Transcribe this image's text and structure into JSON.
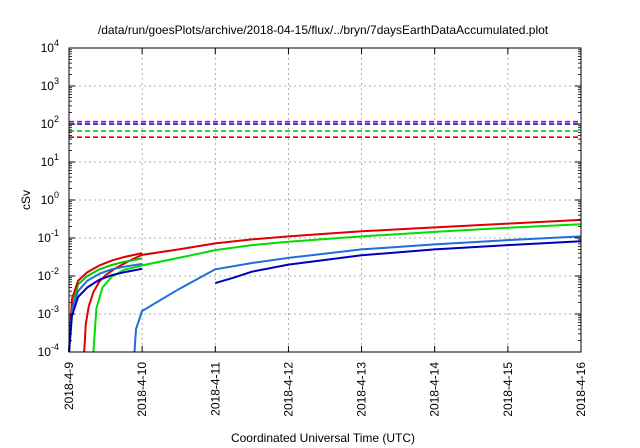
{
  "chart_data": {
    "type": "line",
    "title": "/data/run/goesPlots/archive/2018-04-15/flux/../bryn/7daysEarthDataAccumulated.plot",
    "xlabel": "Coordinated Universal Time (UTC)",
    "ylabel": "cSv",
    "yscale": "log",
    "xlim": [
      "2018-04-09",
      "2018-04-16"
    ],
    "ylim": [
      0.0001,
      10000
    ],
    "grid": true,
    "x_ticks": [
      "2018-4-9",
      "2018-4-10",
      "2018-4-11",
      "2018-4-12",
      "2018-4-13",
      "2018-4-14",
      "2018-4-15",
      "2018-4-16"
    ],
    "y_ticks": [
      {
        "base": "10",
        "exp": "-4"
      },
      {
        "base": "10",
        "exp": "-3"
      },
      {
        "base": "10",
        "exp": "-2"
      },
      {
        "base": "10",
        "exp": "-1"
      },
      {
        "base": "10",
        "exp": "0"
      },
      {
        "base": "10",
        "exp": "1"
      },
      {
        "base": "10",
        "exp": "2"
      },
      {
        "base": "10",
        "exp": "3"
      },
      {
        "base": "10",
        "exp": "4"
      }
    ],
    "thresholds": [
      {
        "color": "#9400d3",
        "value": 115
      },
      {
        "color": "#0000cc",
        "value": 100
      },
      {
        "color": "#00cc00",
        "value": 65
      },
      {
        "color": "#dd0000",
        "value": 45
      }
    ],
    "series": [
      {
        "color": "#dd0000",
        "points": [
          [
            "2018-04-09T05:00",
            0.0001
          ],
          [
            "2018-04-09T05:30",
            0.00055
          ],
          [
            "2018-04-09T06:30",
            0.0016
          ],
          [
            "2018-04-09T08:00",
            0.0038
          ],
          [
            "2018-04-09T10:00",
            0.0072
          ],
          [
            "2018-04-09T12:00",
            0.0105
          ],
          [
            "2018-04-09T15:00",
            0.0155
          ],
          [
            "2018-04-09T18:00",
            0.021
          ],
          [
            "2018-04-09T21:00",
            0.028
          ],
          [
            "2018-04-10T00:00",
            0.036
          ],
          [
            "2018-04-10T12:00",
            0.05
          ],
          [
            "2018-04-11T00:00",
            0.072
          ],
          [
            "2018-04-11T12:00",
            0.092
          ],
          [
            "2018-04-12T00:00",
            0.11
          ],
          [
            "2018-04-13T00:00",
            0.15
          ],
          [
            "2018-04-14T00:00",
            0.19
          ],
          [
            "2018-04-15T00:00",
            0.24
          ],
          [
            "2018-04-16T00:00",
            0.3
          ]
        ]
      },
      {
        "color": "#00dd00",
        "points": [
          [
            "2018-04-09T08:00",
            0.0001
          ],
          [
            "2018-04-09T09:00",
            0.0014
          ],
          [
            "2018-04-09T11:00",
            0.005
          ],
          [
            "2018-04-09T14:00",
            0.0095
          ],
          [
            "2018-04-09T18:00",
            0.0145
          ],
          [
            "2018-04-10T00:00",
            0.019
          ],
          [
            "2018-04-10T12:00",
            0.03
          ],
          [
            "2018-04-11T00:00",
            0.048
          ],
          [
            "2018-04-11T12:00",
            0.065
          ],
          [
            "2018-04-12T00:00",
            0.08
          ],
          [
            "2018-04-13T00:00",
            0.11
          ],
          [
            "2018-04-14T00:00",
            0.145
          ],
          [
            "2018-04-15T00:00",
            0.185
          ],
          [
            "2018-04-16T00:00",
            0.23
          ]
        ]
      },
      {
        "color": "#1e6fd9",
        "points": [
          [
            "2018-04-09T21:30",
            0.0001
          ],
          [
            "2018-04-09T22:00",
            0.0004
          ],
          [
            "2018-04-10T00:00",
            0.0012
          ],
          [
            "2018-04-10T12:00",
            0.0045
          ],
          [
            "2018-04-11T00:00",
            0.015
          ],
          [
            "2018-04-11T12:00",
            0.022
          ],
          [
            "2018-04-12T00:00",
            0.03
          ],
          [
            "2018-04-13T00:00",
            0.05
          ],
          [
            "2018-04-14T00:00",
            0.068
          ],
          [
            "2018-04-15T00:00",
            0.088
          ],
          [
            "2018-04-16T00:00",
            0.11
          ]
        ]
      },
      {
        "color": "#0000bb",
        "points": [
          [
            "2018-04-11T00:00",
            0.0065
          ],
          [
            "2018-04-11T06:00",
            0.009
          ],
          [
            "2018-04-11T12:00",
            0.013
          ],
          [
            "2018-04-12T00:00",
            0.02
          ],
          [
            "2018-04-13T00:00",
            0.035
          ],
          [
            "2018-04-14T00:00",
            0.05
          ],
          [
            "2018-04-15T00:00",
            0.065
          ],
          [
            "2018-04-16T00:00",
            0.082
          ]
        ]
      },
      {
        "color": "#00cc00",
        "points": [
          [
            "2018-04-09T00:00",
            0.0001
          ],
          [
            "2018-04-09T01:00",
            0.0015
          ],
          [
            "2018-04-09T03:00",
            0.006
          ],
          [
            "2018-04-09T06:00",
            0.01
          ],
          [
            "2018-04-09T10:00",
            0.015
          ],
          [
            "2018-04-09T14:00",
            0.0195
          ],
          [
            "2018-04-09T18:00",
            0.0235
          ],
          [
            "2018-04-10T00:00",
            0.029
          ]
        ]
      },
      {
        "color": "#dd0000",
        "points": [
          [
            "2018-04-09T00:00",
            0.0001
          ],
          [
            "2018-04-09T01:00",
            0.0025
          ],
          [
            "2018-04-09T03:00",
            0.0075
          ],
          [
            "2018-04-09T06:00",
            0.0125
          ],
          [
            "2018-04-09T10:00",
            0.019
          ],
          [
            "2018-04-09T14:00",
            0.0255
          ],
          [
            "2018-04-09T18:00",
            0.0315
          ],
          [
            "2018-04-10T00:00",
            0.04
          ]
        ]
      },
      {
        "color": "#1e6fd9",
        "points": [
          [
            "2018-04-09T00:00",
            0.0001
          ],
          [
            "2018-04-09T01:00",
            0.0013
          ],
          [
            "2018-04-09T03:00",
            0.004
          ],
          [
            "2018-04-09T06:00",
            0.0075
          ],
          [
            "2018-04-09T10:00",
            0.0115
          ],
          [
            "2018-04-09T14:00",
            0.015
          ],
          [
            "2018-04-09T18:00",
            0.0175
          ],
          [
            "2018-04-10T00:00",
            0.021
          ]
        ]
      },
      {
        "color": "#0000bb",
        "points": [
          [
            "2018-04-09T00:00",
            0.0001
          ],
          [
            "2018-04-09T01:00",
            0.0009
          ],
          [
            "2018-04-09T03:00",
            0.0028
          ],
          [
            "2018-04-09T06:00",
            0.005
          ],
          [
            "2018-04-09T10:00",
            0.008
          ],
          [
            "2018-04-09T14:00",
            0.0105
          ],
          [
            "2018-04-09T18:00",
            0.0125
          ],
          [
            "2018-04-10T00:00",
            0.0155
          ]
        ]
      }
    ]
  }
}
